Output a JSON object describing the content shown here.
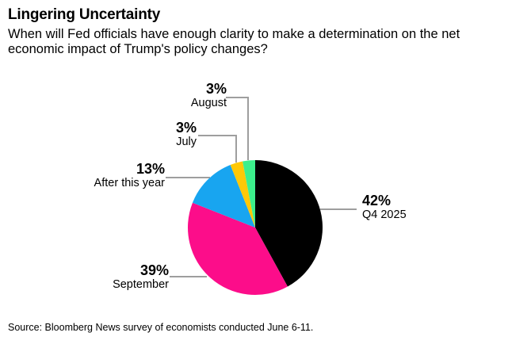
{
  "header": {
    "title": "Lingering Uncertainty",
    "subtitle_line1": "When will Fed officials have enough clarity to make a determination on the net",
    "subtitle_line2": "economic impact of Trump's policy changes?"
  },
  "source": "Source: Bloomberg News survey of economists conducted June 6-11.",
  "colors": {
    "leader_line": "#9E9E9E",
    "text": "#000000",
    "background": "#FFFFFF"
  },
  "chart_data": {
    "type": "pie",
    "title": "Lingering Uncertainty",
    "direction": "clockwise",
    "start_angle_deg": 0,
    "legend_position": "callout-labels",
    "slices": [
      {
        "label": "Q4 2025",
        "value": 42,
        "pct_label": "42%",
        "color": "#000000"
      },
      {
        "label": "September",
        "value": 39,
        "pct_label": "39%",
        "color": "#FC0D8A"
      },
      {
        "label": "After this year",
        "value": 13,
        "pct_label": "13%",
        "color": "#18A5F0"
      },
      {
        "label": "July",
        "value": 3,
        "pct_label": "3%",
        "color": "#FFC806"
      },
      {
        "label": "August",
        "value": 3,
        "pct_label": "3%",
        "color": "#3CEF8C"
      }
    ]
  }
}
